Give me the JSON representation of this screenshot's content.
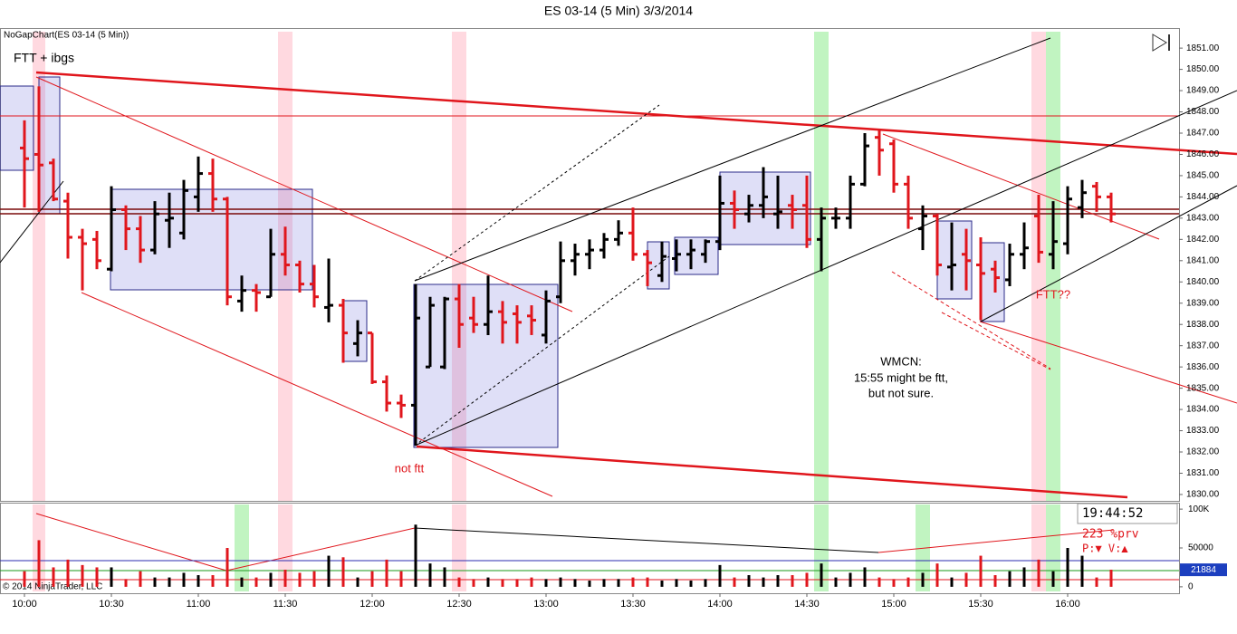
{
  "chart_data": [
    {
      "type": "ohlc",
      "title": "ES 03-14 (5 Min)  3/3/2014",
      "subtitle": "NoGapChart(ES 03-14 (5 Min))",
      "up_color": "#000000",
      "down_color": "#e0161c",
      "open": [
        1846.3,
        1846.0,
        1845.6,
        1843.8,
        1842.1,
        1842.0,
        1840.6,
        1843.4,
        1842.5,
        1841.5,
        1842.9,
        1842.3,
        1844.0,
        1845.1,
        1843.9,
        1839.1,
        1839.6,
        1839.3,
        1841.3,
        1840.8,
        1839.9,
        1838.8,
        1838.9,
        1837.1,
        1837.6,
        1835.3,
        1834.3,
        1834.2,
        1836.0,
        1836.0,
        1839.2,
        1838.3,
        1838.0,
        1838.6,
        1838.5,
        1838.4,
        1837.5,
        1839.3,
        1841.0,
        1841.3,
        1841.5,
        1842.0,
        1842.3,
        1841.3,
        1840.3,
        1841.1,
        1841.3,
        1841.3,
        1841.9,
        1843.7,
        1843.2,
        1843.6,
        1843.2,
        1843.6,
        1843.6,
        1842.0,
        1843.0,
        1843.0,
        1844.6,
        1846.8,
        1846.5,
        1844.6,
        1842.5,
        1843.1,
        1840.7,
        1841.3,
        1840.8,
        1840.6,
        1840.1,
        1841.3,
        1843.1,
        1841.3,
        1841.8,
        1843.5,
        1844.5,
        1844.0
      ],
      "high": [
        1847.6,
        1849.2,
        1845.8,
        1844.2,
        1842.5,
        1842.4,
        1844.5,
        1843.6,
        1843.1,
        1843.8,
        1844.2,
        1844.8,
        1845.9,
        1845.8,
        1844.0,
        1840.3,
        1839.9,
        1842.5,
        1842.6,
        1841.0,
        1840.8,
        1841.1,
        1839.2,
        1838.2,
        1837.6,
        1835.6,
        1834.7,
        1839.9,
        1839.3,
        1839.3,
        1839.9,
        1839.3,
        1840.3,
        1839.1,
        1838.9,
        1838.9,
        1839.6,
        1841.9,
        1841.8,
        1842.0,
        1842.3,
        1842.9,
        1843.5,
        1841.5,
        1841.9,
        1842.0,
        1842.0,
        1842.0,
        1845.0,
        1844.3,
        1844.1,
        1845.4,
        1845.0,
        1844.1,
        1845.0,
        1843.5,
        1843.5,
        1845.0,
        1847.0,
        1847.2,
        1846.7,
        1845.0,
        1843.6,
        1843.2,
        1842.8,
        1842.5,
        1842.1,
        1841.0,
        1841.8,
        1842.8,
        1844.1,
        1843.8,
        1844.5,
        1844.8,
        1844.7,
        1844.2
      ],
      "low": [
        1843.5,
        1843.3,
        1843.8,
        1841.1,
        1839.6,
        1840.6,
        1840.5,
        1841.5,
        1840.9,
        1841.3,
        1841.6,
        1842.0,
        1843.3,
        1843.3,
        1838.9,
        1838.6,
        1838.6,
        1839.3,
        1840.3,
        1839.5,
        1838.8,
        1838.1,
        1836.2,
        1836.5,
        1835.2,
        1833.9,
        1833.6,
        1832.3,
        1836.0,
        1835.9,
        1836.9,
        1837.6,
        1837.5,
        1837.1,
        1837.1,
        1837.5,
        1837.1,
        1839.0,
        1840.3,
        1840.6,
        1841.1,
        1841.7,
        1841.0,
        1839.8,
        1840.0,
        1840.5,
        1840.6,
        1840.9,
        1841.5,
        1842.5,
        1842.8,
        1843.0,
        1842.5,
        1842.5,
        1841.6,
        1840.5,
        1842.5,
        1842.5,
        1844.5,
        1845.0,
        1844.2,
        1842.5,
        1841.5,
        1840.3,
        1839.6,
        1839.6,
        1838.2,
        1839.5,
        1839.8,
        1840.6,
        1840.9,
        1840.6,
        1841.3,
        1843.0,
        1843.3,
        1842.8
      ],
      "close": [
        1845.8,
        1845.5,
        1843.9,
        1842.1,
        1841.8,
        1841.0,
        1843.4,
        1842.5,
        1841.5,
        1843.2,
        1843.0,
        1844.3,
        1845.1,
        1843.9,
        1839.3,
        1839.6,
        1839.5,
        1841.3,
        1840.8,
        1839.9,
        1839.3,
        1838.9,
        1837.6,
        1837.6,
        1835.3,
        1834.3,
        1834.2,
        1838.3,
        1838.9,
        1839.2,
        1838.0,
        1838.0,
        1838.6,
        1838.1,
        1838.1,
        1838.2,
        1839.1,
        1841.0,
        1841.3,
        1841.5,
        1842.0,
        1842.3,
        1841.3,
        1840.9,
        1841.2,
        1841.3,
        1841.5,
        1841.9,
        1843.7,
        1843.4,
        1843.6,
        1844.0,
        1843.3,
        1843.4,
        1842.0,
        1843.0,
        1843.0,
        1844.6,
        1846.4,
        1846.2,
        1844.6,
        1843.0,
        1843.1,
        1840.8,
        1840.8,
        1841.0,
        1840.4,
        1840.2,
        1841.3,
        1841.6,
        1841.4,
        1841.9,
        1843.9,
        1844.2,
        1844.0,
        1843.2
      ],
      "ylim": [
        1829.7,
        1851.9
      ],
      "yticks": [
        {
          "value": 1830,
          "label": "1830.00"
        },
        {
          "value": 1831,
          "label": "1831.00"
        },
        {
          "value": 1832,
          "label": "1832.00"
        },
        {
          "value": 1833,
          "label": "1833.00"
        },
        {
          "value": 1834,
          "label": "1834.00"
        },
        {
          "value": 1835,
          "label": "1835.00"
        },
        {
          "value": 1836,
          "label": "1836.00"
        },
        {
          "value": 1837,
          "label": "1837.00"
        },
        {
          "value": 1838,
          "label": "1838.00"
        },
        {
          "value": 1839,
          "label": "1839.00"
        },
        {
          "value": 1840,
          "label": "1840.00"
        },
        {
          "value": 1841,
          "label": "1841.00"
        },
        {
          "value": 1842,
          "label": "1842.00"
        },
        {
          "value": 1843,
          "label": "1843.00"
        },
        {
          "value": 1844,
          "label": "1844.00"
        },
        {
          "value": 1845,
          "label": "1845.00"
        },
        {
          "value": 1846,
          "label": "1846.00"
        },
        {
          "value": 1847,
          "label": "1847.00"
        },
        {
          "value": 1848,
          "label": "1848.00"
        },
        {
          "value": 1849,
          "label": "1849.00"
        },
        {
          "value": 1850,
          "label": "1850.00"
        },
        {
          "value": 1851,
          "label": "1851.00"
        }
      ],
      "annotations": [
        "FTT + ibgs",
        "not ftt",
        "FTT??",
        "WMCN:",
        "15:55 might be ftt,",
        "but not sure."
      ]
    },
    {
      "type": "bar",
      "footer": "© 2014 NinjaTrader, LLC",
      "clock": "19:44:52",
      "info": [
        "223 %prv",
        "P:▼ V:▲"
      ],
      "categories": [
        "10:00",
        null,
        null,
        null,
        null,
        null,
        "10:30",
        null,
        null,
        null,
        null,
        null,
        "11:00",
        null,
        null,
        null,
        null,
        null,
        "11:30",
        null,
        null,
        null,
        null,
        null,
        "12:00",
        null,
        null,
        null,
        null,
        null,
        "12:30",
        null,
        null,
        null,
        null,
        null,
        "13:00",
        null,
        null,
        null,
        null,
        null,
        "13:30",
        null,
        null,
        null,
        null,
        null,
        "14:00",
        null,
        null,
        null,
        null,
        null,
        "14:30",
        null,
        null,
        null,
        null,
        null,
        "15:00",
        null,
        null,
        null,
        null,
        null,
        "15:30",
        null,
        null,
        null,
        null,
        null,
        "16:00",
        null,
        null,
        null
      ],
      "values": [
        20000,
        60000,
        25000,
        35000,
        28000,
        25000,
        25000,
        10000,
        20000,
        12000,
        12000,
        18000,
        15000,
        15000,
        50000,
        12000,
        12000,
        18000,
        22000,
        18000,
        20000,
        40000,
        38000,
        12000,
        20000,
        35000,
        20000,
        80000,
        30000,
        25000,
        12000,
        10000,
        12000,
        10000,
        10000,
        12000,
        10000,
        12000,
        10000,
        8000,
        10000,
        10000,
        12000,
        12000,
        8000,
        10000,
        8000,
        10000,
        28000,
        12000,
        15000,
        12000,
        15000,
        15000,
        18000,
        30000,
        12000,
        18000,
        25000,
        12000,
        10000,
        12000,
        18000,
        30000,
        12000,
        18000,
        40000,
        15000,
        20000,
        25000,
        35000,
        20000,
        50000,
        40000,
        12000,
        22000
      ],
      "last_value": 21884,
      "ylim": [
        -8300,
        108300
      ],
      "yticks": [
        0,
        50000,
        {
          "value": 100000,
          "label": "100K"
        }
      ]
    }
  ]
}
